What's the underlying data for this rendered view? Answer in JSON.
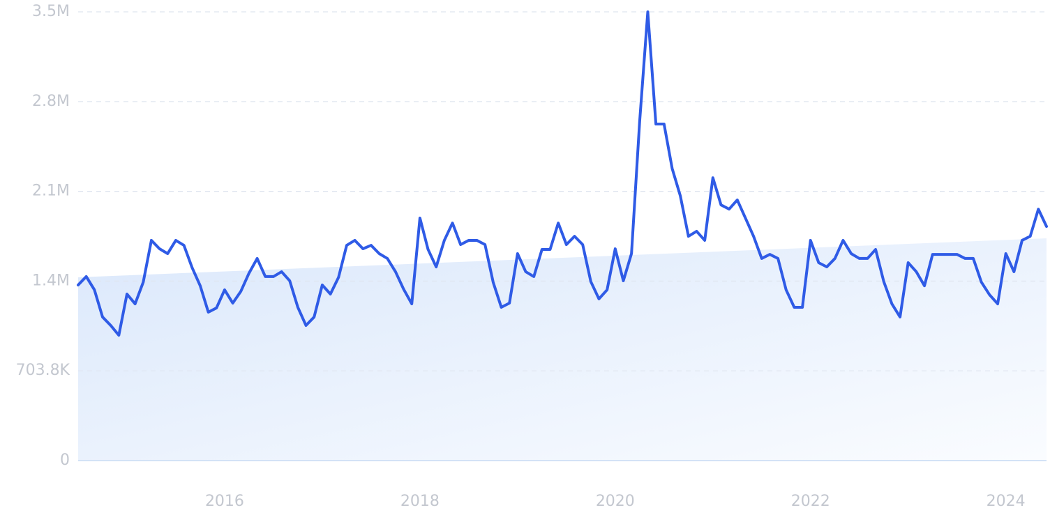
{
  "chart_data": {
    "type": "line",
    "categories": [
      null,
      null,
      null,
      null,
      null,
      null,
      null,
      null,
      null,
      null,
      null,
      null,
      null,
      null,
      null,
      null,
      null,
      null,
      "2016",
      null,
      null,
      null,
      null,
      null,
      null,
      null,
      null,
      null,
      null,
      null,
      null,
      null,
      null,
      null,
      null,
      null,
      null,
      null,
      null,
      null,
      null,
      null,
      "2018",
      null,
      null,
      null,
      null,
      null,
      null,
      null,
      null,
      null,
      null,
      null,
      null,
      null,
      null,
      null,
      null,
      null,
      null,
      null,
      null,
      null,
      null,
      null,
      "2020",
      null,
      null,
      null,
      null,
      null,
      null,
      null,
      null,
      null,
      null,
      null,
      null,
      null,
      null,
      null,
      null,
      null,
      null,
      null,
      null,
      null,
      null,
      null,
      "2022",
      null,
      null,
      null,
      null,
      null,
      null,
      null,
      null,
      null,
      null,
      null,
      null,
      null,
      null,
      null,
      null,
      null,
      null,
      null,
      null,
      null,
      null,
      null,
      "2024",
      null,
      null,
      null,
      null,
      null
    ],
    "series": [
      {
        "color": "#2f5be6",
        "values": [
          1377000,
          1443000,
          1339000,
          1126000,
          1060000,
          983000,
          1306000,
          1229000,
          1399000,
          1727000,
          1661000,
          1623000,
          1727000,
          1688000,
          1514000,
          1371000,
          1164000,
          1197000,
          1339000,
          1235000,
          1328000,
          1470000,
          1585000,
          1443000,
          1443000,
          1481000,
          1410000,
          1202000,
          1060000,
          1126000,
          1377000,
          1306000,
          1437000,
          1688000,
          1727000,
          1661000,
          1688000,
          1623000,
          1585000,
          1481000,
          1344000,
          1229000,
          1902000,
          1656000,
          1519000,
          1727000,
          1863000,
          1694000,
          1727000,
          1727000,
          1694000,
          1399000,
          1202000,
          1235000,
          1623000,
          1481000,
          1443000,
          1656000,
          1656000,
          1863000,
          1694000,
          1759000,
          1694000,
          1404000,
          1268000,
          1339000,
          1661000,
          1410000,
          1623000,
          2656000,
          3519000,
          2639000,
          2639000,
          2290000,
          2076000,
          1759000,
          1798000,
          1727000,
          2218000,
          2005000,
          1972000,
          2044000,
          1902000,
          1759000,
          1585000,
          1617000,
          1585000,
          1339000,
          1202000,
          1202000,
          1727000,
          1552000,
          1519000,
          1585000,
          1727000,
          1623000,
          1585000,
          1585000,
          1656000,
          1404000,
          1229000,
          1126000,
          1552000,
          1481000,
          1371000,
          1617000,
          1617000,
          1617000,
          1617000,
          1585000,
          1585000,
          1399000,
          1300000,
          1229000,
          1623000,
          1481000,
          1727000,
          1759000,
          1972000,
          1836000
        ]
      }
    ],
    "trend": {
      "color": "#dce9fb",
      "values": [
        1437000,
        1743000
      ]
    },
    "ylim": [
      0,
      3519000
    ],
    "yticks": [
      0,
      {
        "value": 703800,
        "label": "703.8K"
      },
      {
        "value": 1407600,
        "label": "1.4M"
      },
      {
        "value": 2111400,
        "label": "2.1M"
      },
      {
        "value": 2815200,
        "label": "2.8M"
      },
      {
        "value": 3519000,
        "label": "3.5M"
      }
    ],
    "grid": true
  }
}
